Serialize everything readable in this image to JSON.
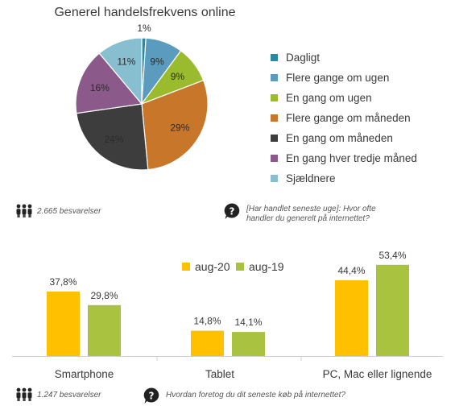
{
  "colors": {
    "daily": "#1f8ea3",
    "several_week": "#5b9bbd",
    "once_week": "#9bbb2e",
    "several_month": "#c8762a",
    "once_month": "#3d3d3d",
    "third_month": "#8b5a8b",
    "rarely": "#87bfd0",
    "aug20": "#ffc000",
    "aug19": "#a9c23f",
    "text": "#3a3a3a",
    "axis": "#d0d0d0"
  },
  "chart_data": [
    {
      "type": "pie",
      "title": "Generel handelsfrekvens online",
      "slices": [
        {
          "label": "Dagligt",
          "value": 1,
          "display": "1%",
          "color_key": "daily"
        },
        {
          "label": "Flere gange om ugen",
          "value": 9,
          "display": "9%",
          "color_key": "several_week"
        },
        {
          "label": "En gang om ugen",
          "value": 9,
          "display": "9%",
          "color_key": "once_week"
        },
        {
          "label": "Flere gange om måneden",
          "value": 29,
          "display": "29%",
          "color_key": "several_month"
        },
        {
          "label": "En gang om måneden",
          "value": 24,
          "display": "24%",
          "color_key": "once_month"
        },
        {
          "label": "En gang hver tredje måned",
          "value": 16,
          "display": "16%",
          "color_key": "third_month"
        },
        {
          "label": "Sjældnere",
          "value": 11,
          "display": "11%",
          "color_key": "rarely"
        }
      ],
      "legend_position": "right"
    },
    {
      "type": "bar",
      "categories": [
        "Smartphone",
        "Tablet",
        "PC, Mac eller lignende"
      ],
      "series": [
        {
          "name": "aug-20",
          "values": [
            37.8,
            14.8,
            44.4
          ],
          "labels": [
            "37,8%",
            "14,8%",
            "44,4%"
          ],
          "color_key": "aug20"
        },
        {
          "name": "aug-19",
          "values": [
            29.8,
            14.1,
            53.4
          ],
          "labels": [
            "29,8%",
            "14,1%",
            "53,4%"
          ],
          "color_key": "aug19"
        }
      ],
      "legend_position": "top-center"
    }
  ],
  "notes": {
    "pie_respondents": "2.665 besvarelser",
    "pie_question": "[Har handlet seneste uge]: Hvor ofte handler du generelt på internettet?",
    "bar_respondents": "1.247 besvarelser",
    "bar_question": "Hvordan foretog du dit seneste køb på internettet?"
  },
  "icons": {
    "respondents": "people-icon",
    "question": "question-bubble-icon"
  }
}
